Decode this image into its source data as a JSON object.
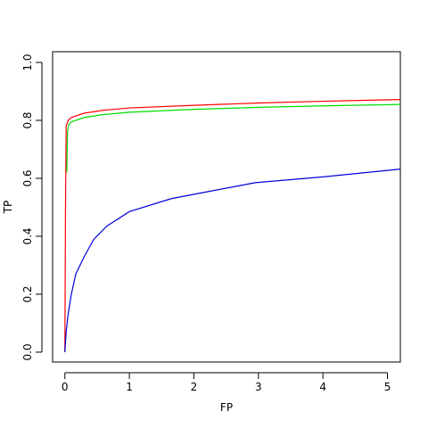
{
  "chart_data": {
    "type": "line",
    "x_label": "FP",
    "y_label": "TP",
    "xlim": [
      -0.19,
      5.2
    ],
    "ylim": [
      -0.034,
      1.037
    ],
    "xticks": [
      0,
      1,
      2,
      3,
      4,
      5
    ],
    "yticks": [
      {
        "value": 0,
        "label": "0.0"
      },
      {
        "value": 0.2,
        "label": "0.2"
      },
      {
        "value": 0.4,
        "label": "0.4"
      },
      {
        "value": 0.6,
        "label": "0.6"
      },
      {
        "value": 0.8,
        "label": "0.8"
      },
      {
        "value": 1,
        "label": "1.0"
      }
    ],
    "series": [
      {
        "color": "#ff0000",
        "x": [
          0,
          0.01,
          0.02,
          0.05,
          0.1,
          0.3,
          0.6,
          1,
          2,
          3,
          4,
          5.2
        ],
        "values": [
          0,
          0.5,
          0.78,
          0.8,
          0.81,
          0.825,
          0.835,
          0.843,
          0.852,
          0.86,
          0.866,
          0.872
        ]
      },
      {
        "color": "#00dd00",
        "x": [
          0.03,
          0.04,
          0.06,
          0.1,
          0.3,
          0.6,
          1,
          2,
          3,
          4,
          5.2
        ],
        "values": [
          0.62,
          0.76,
          0.785,
          0.795,
          0.81,
          0.82,
          0.828,
          0.838,
          0.845,
          0.85,
          0.855
        ]
      },
      {
        "color": "#0000dd",
        "x": [
          0,
          0.02,
          0.05,
          0.1,
          0.17,
          0.3,
          0.45,
          0.65,
          1,
          1.65,
          2.95,
          4,
          5.2
        ],
        "values": [
          0,
          0.07,
          0.13,
          0.2,
          0.27,
          0.33,
          0.39,
          0.435,
          0.485,
          0.53,
          0.585,
          0.605,
          0.632
        ]
      }
    ]
  }
}
